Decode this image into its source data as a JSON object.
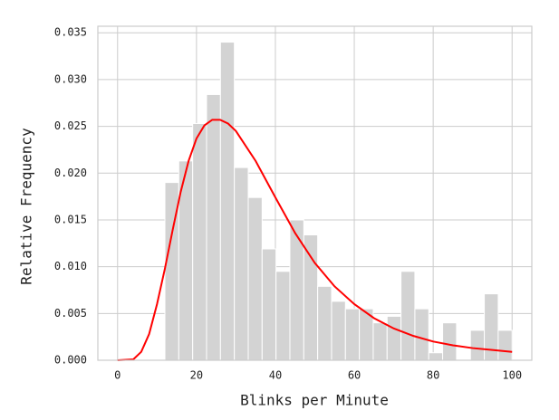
{
  "chart_data": {
    "type": "histogram",
    "xlabel": "Blinks per Minute",
    "ylabel": "Relative Frequency",
    "bins": [
      12,
      15.52,
      19.04,
      22.56,
      26.08,
      29.6,
      33.12,
      36.64,
      40.16,
      43.68,
      47.2,
      50.72,
      54.24,
      57.76,
      61.28,
      64.8,
      68.32,
      71.84,
      75.36,
      78.88,
      82.4,
      85.92,
      89.44,
      92.96,
      96.48,
      100
    ],
    "values": [
      0.019,
      0.0213,
      0.0253,
      0.0284,
      0.034,
      0.0206,
      0.0174,
      0.0119,
      0.0095,
      0.015,
      0.0134,
      0.0079,
      0.0063,
      0.0055,
      0.0055,
      0.004,
      0.0047,
      0.0095,
      0.0055,
      0.0008,
      0.004,
      0,
      0.0032,
      0.0071,
      0.0032
    ],
    "color": "#d3d3d3",
    "curve": {
      "color": "#ff0000",
      "x": [
        0,
        4,
        6,
        8,
        10,
        12,
        14,
        16,
        18,
        20,
        22,
        24,
        26,
        28,
        30,
        35,
        40,
        45,
        50,
        55,
        60,
        65,
        70,
        75,
        80,
        85,
        90,
        95,
        100
      ],
      "values": [
        0,
        0.0001,
        0.0009,
        0.0028,
        0.006,
        0.0098,
        0.014,
        0.018,
        0.0213,
        0.0237,
        0.0251,
        0.0257,
        0.0257,
        0.0253,
        0.0245,
        0.0213,
        0.0174,
        0.0136,
        0.0104,
        0.0079,
        0.006,
        0.0045,
        0.0034,
        0.0026,
        0.002,
        0.0016,
        0.0013,
        0.0011,
        0.0009
      ]
    },
    "xlim": [
      -5,
      105
    ],
    "xticks": [
      0,
      20,
      40,
      60,
      80,
      100
    ],
    "ylim": [
      0,
      0.0357
    ],
    "yticks": [
      {
        "value": 0,
        "label": "0.000"
      },
      0.005,
      {
        "value": 0.01,
        "label": "0.010"
      },
      0.015,
      {
        "value": 0.02,
        "label": "0.020"
      },
      0.025,
      {
        "value": 0.03,
        "label": "0.030"
      },
      0.035
    ],
    "grid": true
  }
}
